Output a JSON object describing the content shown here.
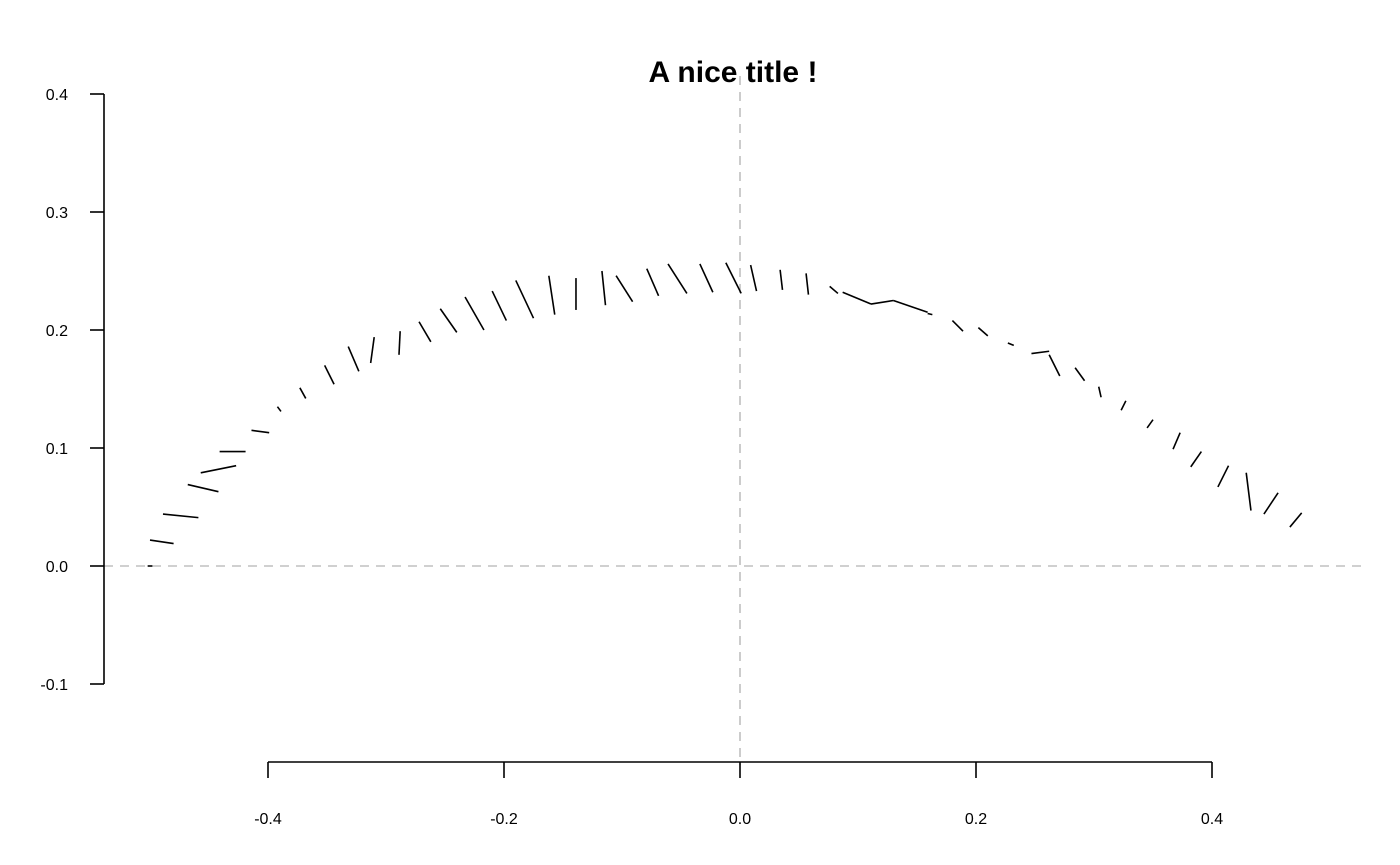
{
  "chart_data": {
    "type": "segments",
    "title": "A nice title !",
    "xlabel": "",
    "ylabel": "",
    "x_ticks": [
      "-0.4",
      "-0.2",
      "0.0",
      "0.2",
      "0.4"
    ],
    "y_ticks": [
      "-0.1",
      "0.0",
      "0.1",
      "0.2",
      "0.3",
      "0.4"
    ],
    "x_tick_values": [
      -0.4,
      -0.2,
      0.0,
      0.2,
      0.4
    ],
    "y_tick_values": [
      -0.1,
      0.0,
      0.1,
      0.2,
      0.3,
      0.4
    ],
    "xlim": [
      -0.54,
      0.53
    ],
    "ylim": [
      -0.1,
      0.4
    ],
    "reference_lines": {
      "x": 0.0,
      "y": 0.0,
      "style": "dashed",
      "color": "#c0c0c0"
    },
    "grid": false,
    "segments": [
      {
        "x0": -0.502,
        "y0": 0.0,
        "x1": -0.498,
        "y1": 0.0
      },
      {
        "x0": -0.5,
        "y0": 0.022,
        "x1": -0.48,
        "y1": 0.019
      },
      {
        "x0": -0.489,
        "y0": 0.044,
        "x1": -0.459,
        "y1": 0.041
      },
      {
        "x0": -0.468,
        "y0": 0.069,
        "x1": -0.442,
        "y1": 0.063
      },
      {
        "x0": -0.457,
        "y0": 0.079,
        "x1": -0.427,
        "y1": 0.085
      },
      {
        "x0": -0.441,
        "y0": 0.097,
        "x1": -0.419,
        "y1": 0.097
      },
      {
        "x0": -0.414,
        "y0": 0.115,
        "x1": -0.399,
        "y1": 0.113
      },
      {
        "x0": -0.392,
        "y0": 0.135,
        "x1": -0.389,
        "y1": 0.131
      },
      {
        "x0": -0.373,
        "y0": 0.151,
        "x1": -0.368,
        "y1": 0.142
      },
      {
        "x0": -0.352,
        "y0": 0.17,
        "x1": -0.344,
        "y1": 0.154
      },
      {
        "x0": -0.332,
        "y0": 0.186,
        "x1": -0.323,
        "y1": 0.165
      },
      {
        "x0": -0.31,
        "y0": 0.194,
        "x1": -0.313,
        "y1": 0.172
      },
      {
        "x0": -0.288,
        "y0": 0.199,
        "x1": -0.289,
        "y1": 0.179
      },
      {
        "x0": -0.272,
        "y0": 0.207,
        "x1": -0.262,
        "y1": 0.19
      },
      {
        "x0": -0.254,
        "y0": 0.218,
        "x1": -0.24,
        "y1": 0.198
      },
      {
        "x0": -0.233,
        "y0": 0.228,
        "x1": -0.217,
        "y1": 0.2
      },
      {
        "x0": -0.21,
        "y0": 0.233,
        "x1": -0.198,
        "y1": 0.208
      },
      {
        "x0": -0.19,
        "y0": 0.242,
        "x1": -0.175,
        "y1": 0.21
      },
      {
        "x0": -0.162,
        "y0": 0.246,
        "x1": -0.157,
        "y1": 0.213
      },
      {
        "x0": -0.139,
        "y0": 0.244,
        "x1": -0.139,
        "y1": 0.217
      },
      {
        "x0": -0.117,
        "y0": 0.25,
        "x1": -0.114,
        "y1": 0.221
      },
      {
        "x0": -0.105,
        "y0": 0.246,
        "x1": -0.091,
        "y1": 0.224
      },
      {
        "x0": -0.079,
        "y0": 0.252,
        "x1": -0.069,
        "y1": 0.229
      },
      {
        "x0": -0.061,
        "y0": 0.256,
        "x1": -0.045,
        "y1": 0.231
      },
      {
        "x0": -0.034,
        "y0": 0.256,
        "x1": -0.023,
        "y1": 0.232
      },
      {
        "x0": -0.012,
        "y0": 0.257,
        "x1": 0.001,
        "y1": 0.231
      },
      {
        "x0": 0.009,
        "y0": 0.255,
        "x1": 0.014,
        "y1": 0.233
      },
      {
        "x0": 0.034,
        "y0": 0.251,
        "x1": 0.036,
        "y1": 0.234
      },
      {
        "x0": 0.056,
        "y0": 0.248,
        "x1": 0.058,
        "y1": 0.23
      },
      {
        "x0": 0.076,
        "y0": 0.237,
        "x1": 0.083,
        "y1": 0.231
      },
      {
        "x0": 0.087,
        "y0": 0.232,
        "x1": 0.111,
        "y1": 0.222
      },
      {
        "x0": 0.111,
        "y0": 0.222,
        "x1": 0.13,
        "y1": 0.225
      },
      {
        "x0": 0.13,
        "y0": 0.225,
        "x1": 0.159,
        "y1": 0.215
      },
      {
        "x0": 0.159,
        "y0": 0.214,
        "x1": 0.163,
        "y1": 0.213
      },
      {
        "x0": 0.18,
        "y0": 0.208,
        "x1": 0.189,
        "y1": 0.199
      },
      {
        "x0": 0.202,
        "y0": 0.202,
        "x1": 0.21,
        "y1": 0.195
      },
      {
        "x0": 0.227,
        "y0": 0.189,
        "x1": 0.232,
        "y1": 0.187
      },
      {
        "x0": 0.247,
        "y0": 0.18,
        "x1": 0.262,
        "y1": 0.182
      },
      {
        "x0": 0.262,
        "y0": 0.179,
        "x1": 0.271,
        "y1": 0.161
      },
      {
        "x0": 0.284,
        "y0": 0.168,
        "x1": 0.292,
        "y1": 0.157
      },
      {
        "x0": 0.304,
        "y0": 0.152,
        "x1": 0.306,
        "y1": 0.143
      },
      {
        "x0": 0.327,
        "y0": 0.14,
        "x1": 0.323,
        "y1": 0.132
      },
      {
        "x0": 0.35,
        "y0": 0.124,
        "x1": 0.345,
        "y1": 0.117
      },
      {
        "x0": 0.373,
        "y0": 0.113,
        "x1": 0.367,
        "y1": 0.099
      },
      {
        "x0": 0.391,
        "y0": 0.097,
        "x1": 0.382,
        "y1": 0.084
      },
      {
        "x0": 0.414,
        "y0": 0.085,
        "x1": 0.405,
        "y1": 0.067
      },
      {
        "x0": 0.429,
        "y0": 0.079,
        "x1": 0.433,
        "y1": 0.047
      },
      {
        "x0": 0.456,
        "y0": 0.062,
        "x1": 0.444,
        "y1": 0.044
      },
      {
        "x0": 0.476,
        "y0": 0.045,
        "x1": 0.466,
        "y1": 0.033
      }
    ]
  }
}
